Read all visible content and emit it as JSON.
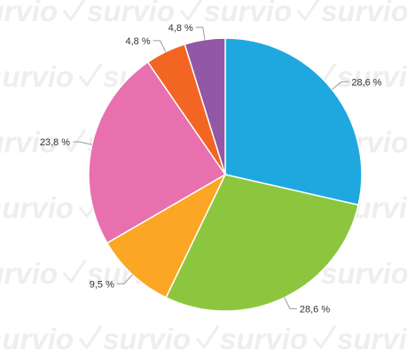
{
  "watermark": {
    "text": "survio",
    "color": "#eeeeee"
  },
  "chart_data": {
    "type": "pie",
    "start_angle_deg": 0,
    "direction": "clockwise",
    "legend": "none",
    "slices": [
      {
        "value": 28.6,
        "label": "28,6 %",
        "color": "#1fa8e0"
      },
      {
        "value": 28.6,
        "label": "28,6 %",
        "color": "#8cc63f"
      },
      {
        "value": 9.5,
        "label": "9,5 %",
        "color": "#fba624"
      },
      {
        "value": 23.8,
        "label": "23,8 %",
        "color": "#e870ae"
      },
      {
        "value": 4.8,
        "label": "4,8 %",
        "color": "#f26522"
      },
      {
        "value": 4.8,
        "label": "4,8 %",
        "color": "#9257a5"
      }
    ]
  }
}
